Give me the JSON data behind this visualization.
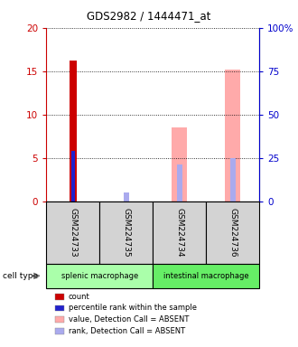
{
  "title": "GDS2982 / 1444471_at",
  "samples": [
    "GSM224733",
    "GSM224735",
    "GSM224734",
    "GSM224736"
  ],
  "cell_types": [
    {
      "label": "splenic macrophage",
      "samples": [
        0,
        1
      ],
      "color": "#aaffaa"
    },
    {
      "label": "intestinal macrophage",
      "samples": [
        2,
        3
      ],
      "color": "#66ee66"
    }
  ],
  "bar_data": [
    {
      "sample_idx": 0,
      "count_val": 16.2,
      "rank_val": 5.8,
      "absent_value": null,
      "absent_rank": null
    },
    {
      "sample_idx": 1,
      "count_val": null,
      "rank_val": null,
      "absent_value": null,
      "absent_rank": 1.0
    },
    {
      "sample_idx": 2,
      "count_val": null,
      "rank_val": null,
      "absent_value": 8.5,
      "absent_rank": 4.2
    },
    {
      "sample_idx": 3,
      "count_val": null,
      "rank_val": null,
      "absent_value": 15.2,
      "absent_rank": 5.0
    }
  ],
  "ylim_left": [
    0,
    20
  ],
  "ylim_right": [
    0,
    100
  ],
  "yticks_left": [
    0,
    5,
    10,
    15,
    20
  ],
  "ytick_labels_left": [
    "0",
    "5",
    "10",
    "15",
    "20"
  ],
  "yticks_right": [
    0,
    25,
    50,
    75,
    100
  ],
  "ytick_labels_right": [
    "0",
    "25",
    "50",
    "75",
    "100%"
  ],
  "left_axis_color": "#cc0000",
  "right_axis_color": "#0000cc",
  "count_color": "#cc0000",
  "rank_color": "#2222cc",
  "absent_value_color": "#ffaaaa",
  "absent_rank_color": "#aaaaee",
  "legend_items": [
    {
      "color": "#cc0000",
      "label": "count"
    },
    {
      "color": "#2222cc",
      "label": "percentile rank within the sample"
    },
    {
      "color": "#ffaaaa",
      "label": "value, Detection Call = ABSENT"
    },
    {
      "color": "#aaaaee",
      "label": "rank, Detection Call = ABSENT"
    }
  ],
  "cell_type_label": "cell type",
  "gray_bg": "#d3d3d3",
  "plot_bg": "#ffffff"
}
